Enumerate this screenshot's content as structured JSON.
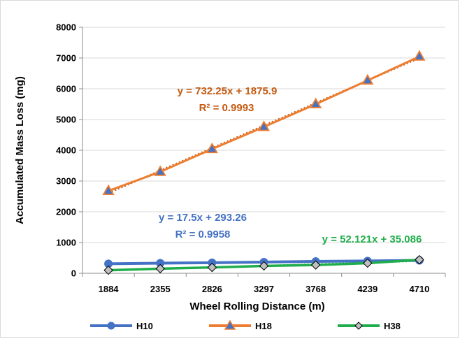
{
  "chart_data": {
    "type": "line",
    "xlabel": "Wheel Rolling Distance (m)",
    "ylabel": "Accumulated Mass Loss (mg)",
    "categories": [
      "1884",
      "2355",
      "2826",
      "3297",
      "3768",
      "4239",
      "4710"
    ],
    "ylim": [
      0,
      8000
    ],
    "yticks": [
      0,
      1000,
      2000,
      3000,
      4000,
      5000,
      6000,
      7000,
      8000
    ],
    "grid": true,
    "legend_position": "bottom",
    "series": [
      {
        "name": "H10",
        "color": "#4472c4",
        "marker": "circle",
        "values": [
          310,
          330,
          345,
          365,
          385,
          400,
          420
        ],
        "trendline": {
          "equation": "y = 17.5x + 293.26",
          "r2": "R² = 0.9958",
          "slope": 17.5,
          "intercept": 293.26,
          "color": "#4472c4"
        }
      },
      {
        "name": "H18",
        "color": "#ed7d31",
        "marker": "triangle",
        "values": [
          2680,
          3300,
          4040,
          4760,
          5500,
          6270,
          7050
        ],
        "trendline": {
          "equation": "y = 732.25x + 1875.9",
          "r2": "R² = 0.9993",
          "slope": 732.25,
          "intercept": 1875.9,
          "color": "#c55a11"
        }
      },
      {
        "name": "H38",
        "color": "#1fae4b",
        "marker": "diamond",
        "values": [
          100,
          150,
          190,
          240,
          270,
          330,
          440
        ],
        "trendline": {
          "equation": "y = 52.121x + 35.086",
          "slope": 52.121,
          "intercept": 35.086,
          "color": "#1fae4b"
        }
      }
    ]
  }
}
